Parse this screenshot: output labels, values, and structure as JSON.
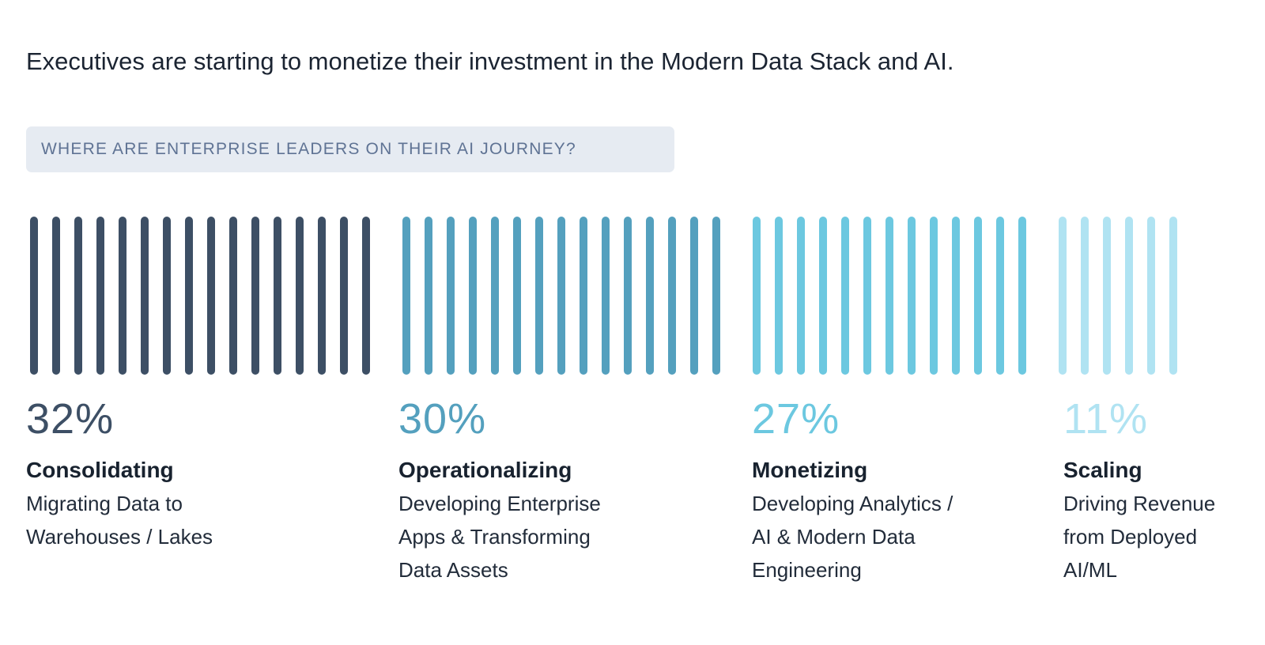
{
  "title": "Executives are starting to monetize their investment in the Modern Data Stack and AI.",
  "question": "WHERE ARE ENTERPRISE LEADERS ON THEIR AI JOURNEY?",
  "chart_data": {
    "type": "bar",
    "title": "WHERE ARE ENTERPRISE LEADERS ON THEIR AI JOURNEY?",
    "categories": [
      "Consolidating",
      "Operationalizing",
      "Monetizing",
      "Scaling"
    ],
    "values": [
      32,
      30,
      27,
      11
    ],
    "unit": "%",
    "bar_counts": [
      16,
      15,
      13,
      6
    ],
    "colors": [
      "#3d4f65",
      "#54a0be",
      "#6cc8e0",
      "#b0e3f2"
    ],
    "stages": [
      {
        "pct": "32%",
        "name": "Consolidating",
        "desc": [
          "Migrating Data to",
          "Warehouses / Lakes"
        ]
      },
      {
        "pct": "30%",
        "name": "Operationalizing",
        "desc": [
          "Developing Enterprise",
          "Apps & Transforming",
          "Data Assets"
        ]
      },
      {
        "pct": "27%",
        "name": "Monetizing",
        "desc": [
          "Developing Analytics /",
          "AI & Modern Data",
          "Engineering"
        ]
      },
      {
        "pct": "11%",
        "name": "Scaling",
        "desc": [
          "Driving Revenue",
          "from Deployed",
          "AI/ML"
        ]
      }
    ]
  }
}
